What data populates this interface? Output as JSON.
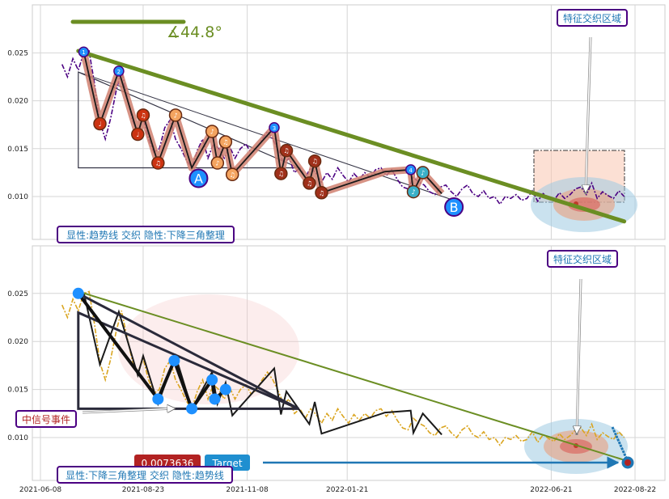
{
  "chart_data": [
    {
      "type": "line",
      "panel": "top",
      "y_ticks": [
        "0.010",
        "0.015",
        "0.020",
        "0.025"
      ],
      "ylim": [
        0.0055,
        0.0295
      ],
      "grid": true,
      "angle_label": "∡44.8°",
      "zone_label": "特征交织区域",
      "caption": "显性:趋势线 交织 隐性:下降三角整理",
      "point_labels": {
        "A": "A",
        "B": "B"
      },
      "colors": {
        "trendline": "#6b8e23",
        "price": "#4b0082",
        "zigzag_fill": "#cd5c5c",
        "marker_blue": "#1e90ff",
        "marker_orange": "#f4a460",
        "marker_red": "#cc3311"
      },
      "price_series": [
        {
          "x": "2021-06-24",
          "y": 0.0238
        },
        {
          "x": "2021-06-28",
          "y": 0.0225
        },
        {
          "x": "2021-07-02",
          "y": 0.0244
        },
        {
          "x": "2021-07-06",
          "y": 0.0232
        },
        {
          "x": "2021-07-10",
          "y": 0.025
        },
        {
          "x": "2021-07-14",
          "y": 0.0252
        },
        {
          "x": "2021-07-18",
          "y": 0.0218
        },
        {
          "x": "2021-07-22",
          "y": 0.0178
        },
        {
          "x": "2021-07-26",
          "y": 0.016
        },
        {
          "x": "2021-07-30",
          "y": 0.0182
        },
        {
          "x": "2021-08-03",
          "y": 0.021
        },
        {
          "x": "2021-08-07",
          "y": 0.0232
        },
        {
          "x": "2021-08-11",
          "y": 0.0205
        },
        {
          "x": "2021-08-15",
          "y": 0.018
        },
        {
          "x": "2021-08-19",
          "y": 0.0168
        },
        {
          "x": "2021-08-23",
          "y": 0.0182
        },
        {
          "x": "2021-08-27",
          "y": 0.016
        },
        {
          "x": "2021-08-31",
          "y": 0.0146
        },
        {
          "x": "2021-09-04",
          "y": 0.015
        },
        {
          "x": "2021-09-08",
          "y": 0.0172
        },
        {
          "x": "2021-09-12",
          "y": 0.018
        },
        {
          "x": "2021-09-16",
          "y": 0.016
        },
        {
          "x": "2021-09-20",
          "y": 0.015
        },
        {
          "x": "2021-09-24",
          "y": 0.0138
        },
        {
          "x": "2021-09-28",
          "y": 0.013
        },
        {
          "x": "2021-10-02",
          "y": 0.0148
        },
        {
          "x": "2021-10-06",
          "y": 0.016
        },
        {
          "x": "2021-10-10",
          "y": 0.014
        },
        {
          "x": "2021-10-14",
          "y": 0.0155
        },
        {
          "x": "2021-10-18",
          "y": 0.015
        },
        {
          "x": "2021-10-22",
          "y": 0.014
        },
        {
          "x": "2021-10-26",
          "y": 0.0152
        },
        {
          "x": "2021-10-30",
          "y": 0.014
        },
        {
          "x": "2021-11-03",
          "y": 0.015
        },
        {
          "x": "2021-11-07",
          "y": 0.0155
        },
        {
          "x": "2021-11-11",
          "y": 0.0145
        },
        {
          "x": "2021-11-15",
          "y": 0.015
        },
        {
          "x": "2021-11-19",
          "y": 0.016
        },
        {
          "x": "2021-11-23",
          "y": 0.0168
        },
        {
          "x": "2021-11-27",
          "y": 0.016
        },
        {
          "x": "2021-12-01",
          "y": 0.0148
        },
        {
          "x": "2021-12-05",
          "y": 0.0135
        },
        {
          "x": "2021-12-09",
          "y": 0.014
        },
        {
          "x": "2021-12-13",
          "y": 0.0125
        },
        {
          "x": "2021-12-17",
          "y": 0.013
        },
        {
          "x": "2021-12-21",
          "y": 0.012
        },
        {
          "x": "2021-12-25",
          "y": 0.013
        },
        {
          "x": "2021-12-29",
          "y": 0.0124
        },
        {
          "x": "2022-01-02",
          "y": 0.0115
        },
        {
          "x": "2022-01-06",
          "y": 0.0125
        },
        {
          "x": "2022-01-10",
          "y": 0.0118
        },
        {
          "x": "2022-01-14",
          "y": 0.013
        },
        {
          "x": "2022-01-18",
          "y": 0.0122
        },
        {
          "x": "2022-01-22",
          "y": 0.0115
        },
        {
          "x": "2022-01-26",
          "y": 0.0124
        },
        {
          "x": "2022-01-30",
          "y": 0.0118
        },
        {
          "x": "2022-02-03",
          "y": 0.0125
        },
        {
          "x": "2022-02-07",
          "y": 0.012
        },
        {
          "x": "2022-02-11",
          "y": 0.0128
        },
        {
          "x": "2022-02-15",
          "y": 0.013
        },
        {
          "x": "2022-02-19",
          "y": 0.0122
        },
        {
          "x": "2022-02-23",
          "y": 0.0128
        },
        {
          "x": "2022-02-27",
          "y": 0.0118
        },
        {
          "x": "2022-03-03",
          "y": 0.011
        },
        {
          "x": "2022-03-07",
          "y": 0.0108
        },
        {
          "x": "2022-03-11",
          "y": 0.012
        },
        {
          "x": "2022-03-15",
          "y": 0.0115
        },
        {
          "x": "2022-03-19",
          "y": 0.0112
        },
        {
          "x": "2022-03-23",
          "y": 0.0105
        },
        {
          "x": "2022-03-27",
          "y": 0.0102
        },
        {
          "x": "2022-03-31",
          "y": 0.011
        },
        {
          "x": "2022-04-04",
          "y": 0.0112
        },
        {
          "x": "2022-04-08",
          "y": 0.0105
        },
        {
          "x": "2022-04-12",
          "y": 0.01
        },
        {
          "x": "2022-04-16",
          "y": 0.0108
        },
        {
          "x": "2022-04-20",
          "y": 0.0112
        },
        {
          "x": "2022-04-24",
          "y": 0.0103
        },
        {
          "x": "2022-04-28",
          "y": 0.01
        },
        {
          "x": "2022-05-02",
          "y": 0.0106
        },
        {
          "x": "2022-05-06",
          "y": 0.0098
        },
        {
          "x": "2022-05-10",
          "y": 0.01
        },
        {
          "x": "2022-05-14",
          "y": 0.0092
        },
        {
          "x": "2022-05-18",
          "y": 0.01
        },
        {
          "x": "2022-05-22",
          "y": 0.0098
        },
        {
          "x": "2022-05-26",
          "y": 0.0102
        },
        {
          "x": "2022-05-30",
          "y": 0.0096
        },
        {
          "x": "2022-06-03",
          "y": 0.0098
        },
        {
          "x": "2022-06-07",
          "y": 0.0106
        },
        {
          "x": "2022-06-11",
          "y": 0.0095
        },
        {
          "x": "2022-06-15",
          "y": 0.0103
        },
        {
          "x": "2022-06-19",
          "y": 0.0099
        },
        {
          "x": "2022-06-23",
          "y": 0.0096
        },
        {
          "x": "2022-06-27",
          "y": 0.0104
        },
        {
          "x": "2022-07-01",
          "y": 0.0098
        },
        {
          "x": "2022-07-05",
          "y": 0.0102
        },
        {
          "x": "2022-07-09",
          "y": 0.0108
        },
        {
          "x": "2022-07-13",
          "y": 0.011
        },
        {
          "x": "2022-07-17",
          "y": 0.0102
        },
        {
          "x": "2022-07-21",
          "y": 0.0114
        },
        {
          "x": "2022-07-25",
          "y": 0.0098
        },
        {
          "x": "2022-07-29",
          "y": 0.0105
        },
        {
          "x": "2022-08-02",
          "y": 0.0101
        },
        {
          "x": "2022-08-06",
          "y": 0.0098
        },
        {
          "x": "2022-08-10",
          "y": 0.0106
        },
        {
          "x": "2022-08-14",
          "y": 0.01
        }
      ],
      "trendline": [
        {
          "x": "2021-07-06",
          "y": 0.0252
        },
        {
          "x": "2022-08-14",
          "y": 0.0074
        }
      ],
      "triangle": [
        {
          "x": "2021-07-06",
          "y": 0.023
        },
        {
          "x": "2021-07-06",
          "y": 0.013
        },
        {
          "x": "2021-12-16",
          "y": 0.013
        }
      ],
      "zigzag": [
        {
          "x": "2021-07-10",
          "y": 0.0251,
          "mark": "blue",
          "label": "1"
        },
        {
          "x": "2021-07-22",
          "y": 0.0176,
          "mark": "red",
          "label": "♩"
        },
        {
          "x": "2021-08-05",
          "y": 0.0231,
          "mark": "blue",
          "label": "2"
        },
        {
          "x": "2021-08-19",
          "y": 0.0165,
          "mark": "red",
          "label": "♩"
        },
        {
          "x": "2021-08-23",
          "y": 0.0185,
          "mark": "red",
          "label": "♫"
        },
        {
          "x": "2021-09-03",
          "y": 0.0135,
          "mark": "red",
          "label": "♫"
        },
        {
          "x": "2021-09-16",
          "y": 0.0185,
          "mark": "orange",
          "label": "♪"
        },
        {
          "x": "2021-09-28",
          "y": 0.013,
          "mark": "none",
          "label": ""
        },
        {
          "x": "2021-10-13",
          "y": 0.0168,
          "mark": "orange",
          "label": "♪"
        },
        {
          "x": "2021-10-17",
          "y": 0.0135,
          "mark": "orange",
          "label": "♪"
        },
        {
          "x": "2021-10-23",
          "y": 0.0157,
          "mark": "orange",
          "label": "♫"
        },
        {
          "x": "2021-10-28",
          "y": 0.0123,
          "mark": "orange",
          "label": "♫"
        },
        {
          "x": "2021-11-28",
          "y": 0.0172,
          "mark": "blue",
          "label": "3"
        },
        {
          "x": "2021-12-03",
          "y": 0.0124,
          "mark": "darkred",
          "label": "♫"
        },
        {
          "x": "2021-12-07",
          "y": 0.0148,
          "mark": "darkred",
          "label": "♫"
        },
        {
          "x": "2021-12-24",
          "y": 0.0114,
          "mark": "darkred",
          "label": "♫"
        },
        {
          "x": "2021-12-28",
          "y": 0.0137,
          "mark": "darkred",
          "label": "♫"
        },
        {
          "x": "2022-01-02",
          "y": 0.0104,
          "mark": "darkred",
          "label": "♫"
        },
        {
          "x": "2022-02-18",
          "y": 0.0126,
          "mark": "none",
          "label": ""
        },
        {
          "x": "2022-03-09",
          "y": 0.0128,
          "mark": "blue",
          "label": "4"
        },
        {
          "x": "2022-03-11",
          "y": 0.0105,
          "mark": "teal",
          "label": "♪"
        },
        {
          "x": "2022-03-18",
          "y": 0.0125,
          "mark": "teal",
          "label": "♪"
        },
        {
          "x": "2022-04-01",
          "y": 0.0103,
          "mark": "none",
          "label": ""
        }
      ],
      "points": [
        {
          "name": "A",
          "x": "2021-10-03",
          "y": 0.0119
        },
        {
          "name": "B",
          "x": "2022-04-10",
          "y": 0.0089
        }
      ]
    },
    {
      "type": "line",
      "panel": "bottom",
      "x_ticks": [
        "2021-06-08",
        "2021-08-23",
        "2021-11-08",
        "2022-01-21",
        "2022-06-21",
        "2022-08-22"
      ],
      "y_ticks": [
        "0.010",
        "0.015",
        "0.020",
        "0.025"
      ],
      "ylim": [
        0.0055,
        0.0295
      ],
      "grid": true,
      "zone_label": "特征交织区域",
      "signal_label": "中信号事件",
      "value_tag": "0.0073636",
      "target_tag": "Target",
      "caption": "显性:下降三角整理 交织 隐性:趋势线",
      "colors": {
        "trendline": "#6b8e23",
        "price": "#daa520",
        "triangle": "#1a1a1a",
        "marker_blue": "#1e90ff",
        "target_blue": "#1f77b4",
        "value_tag_bg": "#b22222"
      },
      "trendline": [
        {
          "x": "2021-07-06",
          "y": 0.0252
        },
        {
          "x": "2022-08-20",
          "y": 0.0074
        }
      ],
      "triangle": [
        {
          "x": "2021-07-06",
          "y": 0.023
        },
        {
          "x": "2021-07-06",
          "y": 0.013
        },
        {
          "x": "2021-12-16",
          "y": 0.013
        }
      ],
      "swing_points": [
        {
          "x": "2021-07-06",
          "y": 0.025
        },
        {
          "x": "2021-09-03",
          "y": 0.014
        },
        {
          "x": "2021-09-15",
          "y": 0.018
        },
        {
          "x": "2021-09-28",
          "y": 0.013
        },
        {
          "x": "2021-10-13",
          "y": 0.016
        },
        {
          "x": "2021-10-15",
          "y": 0.014
        },
        {
          "x": "2021-10-23",
          "y": 0.015
        }
      ],
      "target": {
        "x": "2022-08-20",
        "y": 0.0074
      }
    }
  ]
}
